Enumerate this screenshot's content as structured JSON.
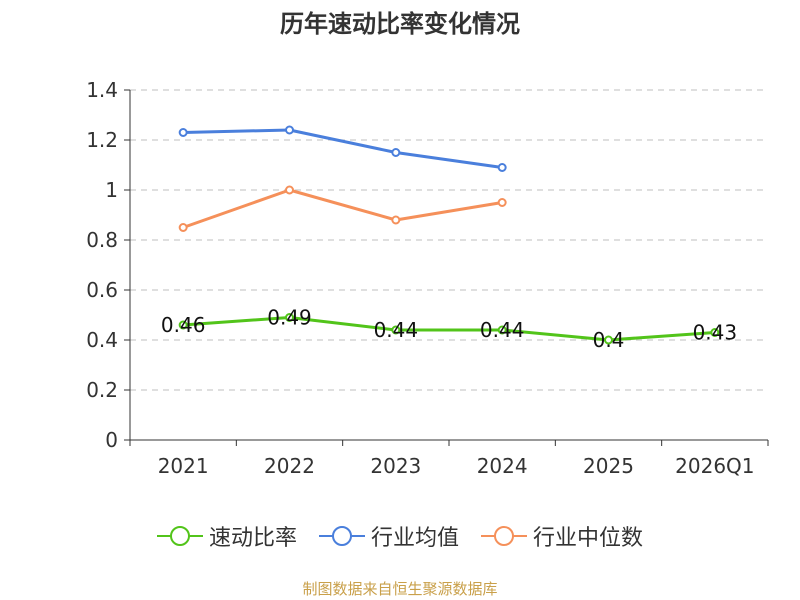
{
  "chart_data": {
    "type": "line",
    "title": "历年速动比率变化情况",
    "categories": [
      "2021",
      "2022",
      "2023",
      "2024",
      "2025",
      "2026Q1"
    ],
    "ylim": [
      0,
      1.4
    ],
    "yticks": [
      "0",
      "0.2",
      "0.4",
      "0.6",
      "0.8",
      "1",
      "1.2",
      "1.4"
    ],
    "grid": true,
    "legend_position": "bottom",
    "series": [
      {
        "name": "速动比率",
        "color": "#52c41a",
        "values": [
          0.46,
          0.49,
          0.44,
          0.44,
          0.4,
          0.43
        ],
        "labels": [
          "0.46",
          "0.49",
          "0.44",
          "0.44",
          "0.4",
          "0.43"
        ]
      },
      {
        "name": "行业均值",
        "color": "#4a7fdc",
        "values": [
          1.23,
          1.24,
          1.15,
          1.09,
          null,
          null
        ]
      },
      {
        "name": "行业中位数",
        "color": "#f5905a",
        "values": [
          0.85,
          1.0,
          0.88,
          0.95,
          null,
          null
        ]
      }
    ]
  },
  "source": "制图数据来自恒生聚源数据库"
}
